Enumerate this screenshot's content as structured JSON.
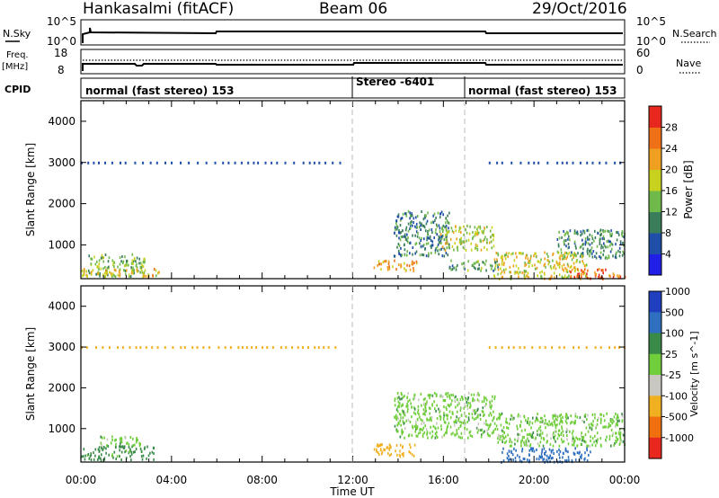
{
  "header": {
    "site": "Hankasalmi (fitACF)",
    "beam": "Beam 06",
    "date": "29/Oct/2016"
  },
  "noise_panel": {
    "left_label": "N.Sky",
    "right_label": "N.Search",
    "left_ticks": [
      "10^5",
      "10^0"
    ],
    "right_ticks": [
      "10^5",
      "10^0"
    ]
  },
  "freq_panel": {
    "left_label_1": "Freq.",
    "left_label_2": "[MHz]",
    "right_label": "Nave",
    "left_ticks": [
      "18",
      "8"
    ],
    "right_ticks": [
      "60",
      "0"
    ]
  },
  "cpid_panel": {
    "label": "CPID",
    "segments": [
      {
        "start": "00:00",
        "end": "12:00",
        "text": "normal (fast stereo) 153"
      },
      {
        "start": "12:00",
        "end": "17:00",
        "text": "Stereo -6401"
      },
      {
        "start": "17:00",
        "end": "00:00",
        "text": "normal (fast stereo) 153"
      }
    ]
  },
  "colors": {
    "power": [
      "#1f1fe8",
      "#1f4fa8",
      "#3a7d5a",
      "#6fb84a",
      "#c8d21e",
      "#f0a020",
      "#f07018",
      "#e8281e"
    ],
    "velocity": [
      "#1f3fbf",
      "#2f6fbf",
      "#3a8a4a",
      "#6fce3a",
      "#c8c8c0",
      "#f0b020",
      "#f07010",
      "#e8281e"
    ]
  },
  "chart_data": [
    {
      "type": "heatmap",
      "name": "power",
      "xlabel": "",
      "ylabel": "Slant Range [km]",
      "xlim": [
        "00:00",
        "00:00"
      ],
      "ylim": [
        180,
        4500
      ],
      "x_ticks": [
        "00:00",
        "04:00",
        "08:00",
        "12:00",
        "16:00",
        "20:00",
        "00:00"
      ],
      "y_ticks": [
        1000,
        2000,
        3000,
        4000
      ],
      "colorbar": {
        "label": "Power [dB]",
        "ticks": [
          4,
          8,
          12,
          16,
          20,
          24,
          28
        ],
        "range": [
          0,
          32
        ]
      },
      "regions": [
        {
          "t_start": 0.1,
          "t_end": 2.8,
          "r_min": 250,
          "r_max": 800,
          "value": 14
        },
        {
          "t_start": 0.0,
          "t_end": 3.5,
          "r_min": 250,
          "r_max": 450,
          "value": 20
        },
        {
          "t_start": 12.9,
          "t_end": 14.8,
          "r_min": 400,
          "r_max": 650,
          "value": 22
        },
        {
          "t_start": 13.8,
          "t_end": 16.3,
          "r_min": 750,
          "r_max": 1850,
          "value": 10
        },
        {
          "t_start": 15.8,
          "t_end": 18.2,
          "r_min": 900,
          "r_max": 1500,
          "value": 17
        },
        {
          "t_start": 16.2,
          "t_end": 18.5,
          "r_min": 400,
          "r_max": 650,
          "value": 12
        },
        {
          "t_start": 18.2,
          "t_end": 22.3,
          "r_min": 200,
          "r_max": 850,
          "value": 19
        },
        {
          "t_start": 21.0,
          "t_end": 24.0,
          "r_min": 700,
          "r_max": 1400,
          "value": 11
        },
        {
          "t_start": 21.5,
          "t_end": 24.0,
          "r_min": 200,
          "r_max": 450,
          "value": 27
        }
      ],
      "ground_scatter_band": {
        "r_min": 2950,
        "r_max": 3020,
        "t_ranges": [
          [
            0,
            11.5
          ],
          [
            18,
            24
          ]
        ],
        "value": 6
      }
    },
    {
      "type": "heatmap",
      "name": "velocity",
      "xlabel": "Time UT",
      "ylabel": "Slant Range [km]",
      "xlim": [
        "00:00",
        "00:00"
      ],
      "ylim": [
        180,
        4500
      ],
      "x_ticks": [
        "00:00",
        "04:00",
        "08:00",
        "12:00",
        "16:00",
        "20:00",
        "00:00"
      ],
      "y_ticks": [
        1000,
        2000,
        3000,
        4000
      ],
      "colorbar": {
        "label": "Velocity [m s^-1]",
        "ticks": [
          1000,
          500,
          100,
          25,
          -25,
          -100,
          -500,
          -1000
        ]
      },
      "regions": [
        {
          "t_start": 0.0,
          "t_end": 3.2,
          "r_min": 250,
          "r_max": 600,
          "value": 50
        },
        {
          "t_start": 0.8,
          "t_end": 2.6,
          "r_min": 600,
          "r_max": 850,
          "value": 0
        },
        {
          "t_start": 12.9,
          "t_end": 14.8,
          "r_min": 350,
          "r_max": 650,
          "value": -300
        },
        {
          "t_start": 13.8,
          "t_end": 18.3,
          "r_min": 800,
          "r_max": 1900,
          "value": 0
        },
        {
          "t_start": 18.3,
          "t_end": 24.0,
          "r_min": 600,
          "r_max": 1400,
          "value": 0
        },
        {
          "t_start": 18.5,
          "t_end": 22.5,
          "r_min": 200,
          "r_max": 550,
          "value": 150
        }
      ],
      "ground_scatter_band": {
        "r_min": 2950,
        "r_max": 3020,
        "t_ranges": [
          [
            0,
            11.5
          ],
          [
            18,
            24
          ]
        ],
        "value": -150
      }
    }
  ]
}
